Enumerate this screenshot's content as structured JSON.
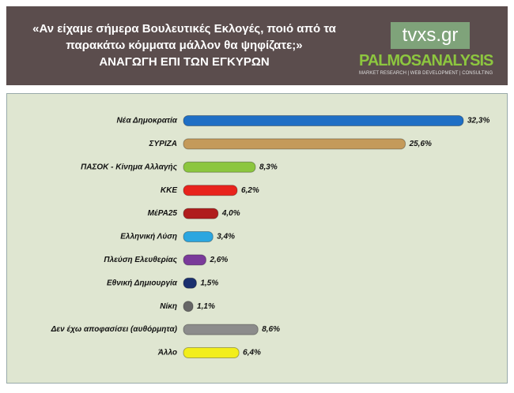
{
  "chart_data": {
    "type": "bar",
    "orientation": "horizontal",
    "title": "«Αν είχαμε σήμερα Βουλευτικές Εκλογές, ποιό από τα παρακάτω κόμματα μάλλον θα ψηφίζατε;»",
    "subtitle": "ΑΝΑΓΩΓΗ ΕΠΙ ΤΩΝ ΕΓΚΥΡΩΝ",
    "annotations": [
      "tvxs.gr",
      "PALMOSANALYSIS",
      "MARKET RESEARCH | WEB DEVELOPMENT | CONSULTING"
    ],
    "categories": [
      "Νέα Δημοκρατία",
      "ΣΥΡΙΖΑ",
      "ΠΑΣΟΚ - Κίνημα Αλλαγής",
      "ΚΚΕ",
      "ΜέΡΑ25",
      "Ελληνική Λύση",
      "Πλεύση Ελευθερίας",
      "Εθνική Δημιουργία",
      "Νίκη",
      "Δεν έχω αποφασίσει (αυθόρμητα)",
      "Άλλο"
    ],
    "values": [
      32.3,
      25.6,
      8.3,
      6.2,
      4.0,
      3.4,
      2.6,
      1.5,
      1.1,
      8.6,
      6.4
    ],
    "value_labels": [
      "32,3%",
      "25,6%",
      "8,3%",
      "6,2%",
      "4,0%",
      "3,4%",
      "2,6%",
      "1,5%",
      "1,1%",
      "8,6%",
      "6,4%"
    ],
    "colors": [
      "#1f6fc5",
      "#c49a5a",
      "#8cc63f",
      "#e8231c",
      "#b01c1c",
      "#2ba6e0",
      "#7a3a9a",
      "#1a2f6e",
      "#666666",
      "#8c8c8c",
      "#f2ee1c"
    ]
  }
}
